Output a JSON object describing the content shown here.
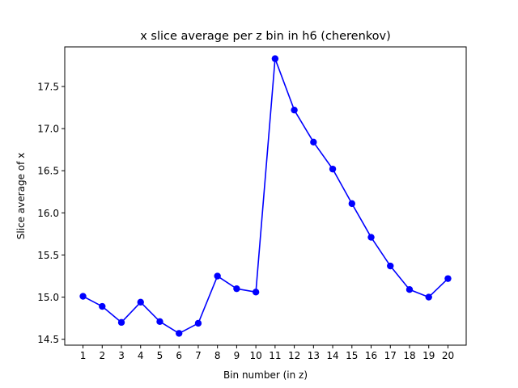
{
  "chart_data": {
    "type": "line",
    "title": "x slice average per z bin in h6 (cherenkov)",
    "xlabel": "Bin number (in z)",
    "ylabel": "Slice average of x",
    "x": [
      1,
      2,
      3,
      4,
      5,
      6,
      7,
      8,
      9,
      10,
      11,
      12,
      13,
      14,
      15,
      16,
      17,
      18,
      19,
      20
    ],
    "series": [
      {
        "color": "#0000ff",
        "marker": "circle",
        "values": [
          15.01,
          14.89,
          14.7,
          14.94,
          14.71,
          14.57,
          14.69,
          15.25,
          15.1,
          15.06,
          17.83,
          17.22,
          16.84,
          16.52,
          16.11,
          15.71,
          15.37,
          15.09,
          15.0,
          15.22
        ]
      }
    ],
    "xticks": [
      "1",
      "2",
      "3",
      "4",
      "5",
      "6",
      "7",
      "8",
      "9",
      "10",
      "11",
      "12",
      "13",
      "14",
      "15",
      "16",
      "17",
      "18",
      "19",
      "20"
    ],
    "yticks": [
      "14.5",
      "15.0",
      "15.5",
      "16.0",
      "16.5",
      "17.0",
      "17.5"
    ],
    "xlim": [
      0.05,
      20.95
    ],
    "ylim": [
      14.43,
      17.97
    ],
    "grid": false,
    "legend": "none"
  }
}
